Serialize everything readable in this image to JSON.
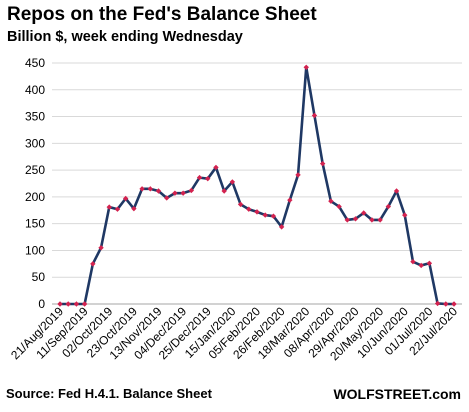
{
  "header": {
    "title": "Repos on the Fed's Balance Sheet",
    "subtitle": "Billion $, week ending Wednesday"
  },
  "footer": {
    "source": "Source: Fed H.4.1. Balance Sheet",
    "brand": "WOLFSTREET.com"
  },
  "colors": {
    "line": "#1f3864",
    "marker": "#d3224f",
    "grid": "#d9d9d9",
    "axis": "#a6a6a6"
  },
  "chart_data": {
    "type": "line",
    "title": "Repos on the Fed's Balance Sheet",
    "subtitle": "Billion $, week ending Wednesday",
    "xlabel": "",
    "ylabel": "",
    "ylim": [
      0,
      450
    ],
    "yticks": [
      0,
      50,
      100,
      150,
      200,
      250,
      300,
      350,
      400,
      450
    ],
    "grid": true,
    "legend": "none",
    "x_tick_labels": [
      "21/Aug/2019",
      "11/Sep/2019",
      "02/Oct/2019",
      "23/Oct/2019",
      "13/Nov/2019",
      "04/Dec/2019",
      "25/Dec/2019",
      "15/Jan/2020",
      "05/Feb/2020",
      "26/Feb/2020",
      "18/Mar/2020",
      "08/Apr/2020",
      "29/Apr/2020",
      "20/May/2020",
      "10/Jun/2020",
      "01/Jul/2020",
      "22/Jul/2020"
    ],
    "x": [
      "21/Aug/2019",
      "28/Aug/2019",
      "04/Sep/2019",
      "11/Sep/2019",
      "18/Sep/2019",
      "25/Sep/2019",
      "02/Oct/2019",
      "09/Oct/2019",
      "16/Oct/2019",
      "23/Oct/2019",
      "30/Oct/2019",
      "06/Nov/2019",
      "13/Nov/2019",
      "20/Nov/2019",
      "27/Nov/2019",
      "04/Dec/2019",
      "11/Dec/2019",
      "18/Dec/2019",
      "25/Dec/2019",
      "01/Jan/2020",
      "08/Jan/2020",
      "15/Jan/2020",
      "22/Jan/2020",
      "29/Jan/2020",
      "05/Feb/2020",
      "12/Feb/2020",
      "19/Feb/2020",
      "26/Feb/2020",
      "04/Mar/2020",
      "11/Mar/2020",
      "18/Mar/2020",
      "25/Mar/2020",
      "01/Apr/2020",
      "08/Apr/2020",
      "15/Apr/2020",
      "22/Apr/2020",
      "29/Apr/2020",
      "06/May/2020",
      "13/May/2020",
      "20/May/2020",
      "27/May/2020",
      "03/Jun/2020",
      "10/Jun/2020",
      "17/Jun/2020",
      "24/Jun/2020",
      "01/Jul/2020",
      "08/Jul/2020",
      "15/Jul/2020",
      "22/Jul/2020"
    ],
    "series": [
      {
        "values": [
          0,
          0,
          0,
          0,
          75,
          105,
          181,
          177,
          197,
          178,
          215,
          215,
          211,
          198,
          207,
          207,
          212,
          236,
          234,
          255,
          211,
          228,
          186,
          177,
          172,
          166,
          164,
          144,
          194,
          241,
          442,
          352,
          262,
          192,
          182,
          157,
          159,
          170,
          157,
          157,
          182,
          211,
          166,
          79,
          72,
          76,
          1,
          0,
          0
        ]
      }
    ]
  }
}
